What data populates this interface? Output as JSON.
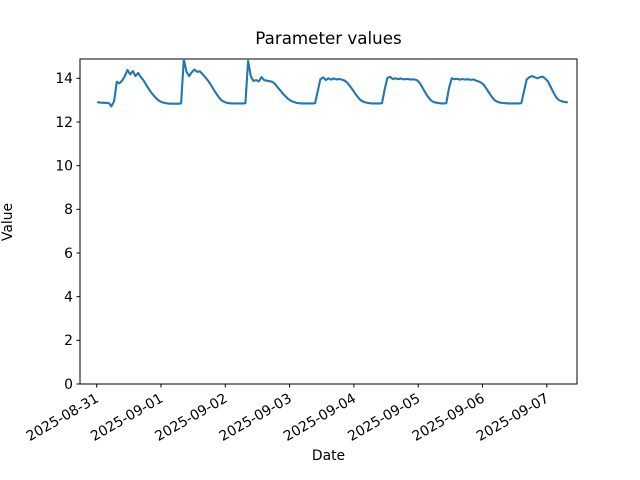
{
  "figure": {
    "background_color": "#ffffff",
    "text_color": "#000000"
  },
  "chart_data": {
    "type": "line",
    "title": "Parameter values",
    "xlabel": "Date",
    "ylabel": "Value",
    "legend": null,
    "grid": false,
    "line_color": "#1f77b4",
    "ylim": [
      0,
      14.885
    ],
    "ytick_values": [
      0,
      2,
      4,
      6,
      8,
      10,
      12,
      14
    ],
    "xtick_labels": [
      "2025-08-31",
      "2025-09-01",
      "2025-09-02",
      "2025-09-03",
      "2025-09-04",
      "2025-09-05",
      "2025-09-06",
      "2025-09-07"
    ],
    "x_start": "2025-08-31T00:30:00",
    "x_step_hours": 1,
    "series": [
      {
        "name": "Parameter values",
        "values": [
          12.9,
          12.89,
          12.88,
          12.88,
          12.87,
          12.72,
          12.95,
          13.84,
          13.77,
          13.9,
          14.1,
          14.38,
          14.18,
          14.33,
          14.1,
          14.25,
          14.05,
          13.9,
          13.7,
          13.5,
          13.33,
          13.18,
          13.05,
          12.95,
          12.9,
          12.87,
          12.85,
          12.84,
          12.84,
          12.84,
          12.84,
          12.85,
          14.87,
          14.3,
          14.1,
          14.28,
          14.4,
          14.3,
          14.32,
          14.2,
          14.05,
          13.9,
          13.72,
          13.52,
          13.33,
          13.15,
          13.0,
          12.93,
          12.88,
          12.86,
          12.85,
          12.85,
          12.85,
          12.85,
          12.85,
          12.86,
          14.8,
          14.1,
          13.88,
          13.92,
          13.86,
          14.06,
          13.92,
          13.89,
          13.87,
          13.84,
          13.75,
          13.6,
          13.45,
          13.3,
          13.17,
          13.05,
          12.97,
          12.92,
          12.88,
          12.86,
          12.85,
          12.85,
          12.85,
          12.85,
          12.85,
          12.86,
          13.4,
          13.96,
          14.04,
          13.92,
          14.0,
          13.94,
          13.99,
          13.95,
          13.97,
          13.94,
          13.9,
          13.8,
          13.65,
          13.48,
          13.3,
          13.14,
          13.0,
          12.93,
          12.89,
          12.87,
          12.85,
          12.85,
          12.85,
          12.85,
          12.86,
          13.5,
          14.02,
          14.07,
          13.97,
          14.0,
          13.96,
          13.99,
          13.95,
          13.97,
          13.96,
          13.94,
          13.95,
          13.92,
          13.8,
          13.6,
          13.38,
          13.18,
          13.02,
          12.93,
          12.89,
          12.87,
          12.85,
          12.85,
          12.86,
          13.55,
          14.0,
          13.96,
          13.98,
          13.94,
          13.97,
          13.94,
          13.96,
          13.93,
          13.95,
          13.9,
          13.86,
          13.8,
          13.7,
          13.52,
          13.33,
          13.15,
          13.0,
          12.93,
          12.89,
          12.87,
          12.86,
          12.85,
          12.85,
          12.85,
          12.85,
          12.85,
          12.86,
          13.4,
          13.95,
          14.05,
          14.1,
          14.05,
          14.0,
          14.05,
          14.08,
          13.98,
          13.85,
          13.6,
          13.35,
          13.13,
          13.0,
          12.95,
          12.92,
          12.9
        ]
      }
    ]
  }
}
